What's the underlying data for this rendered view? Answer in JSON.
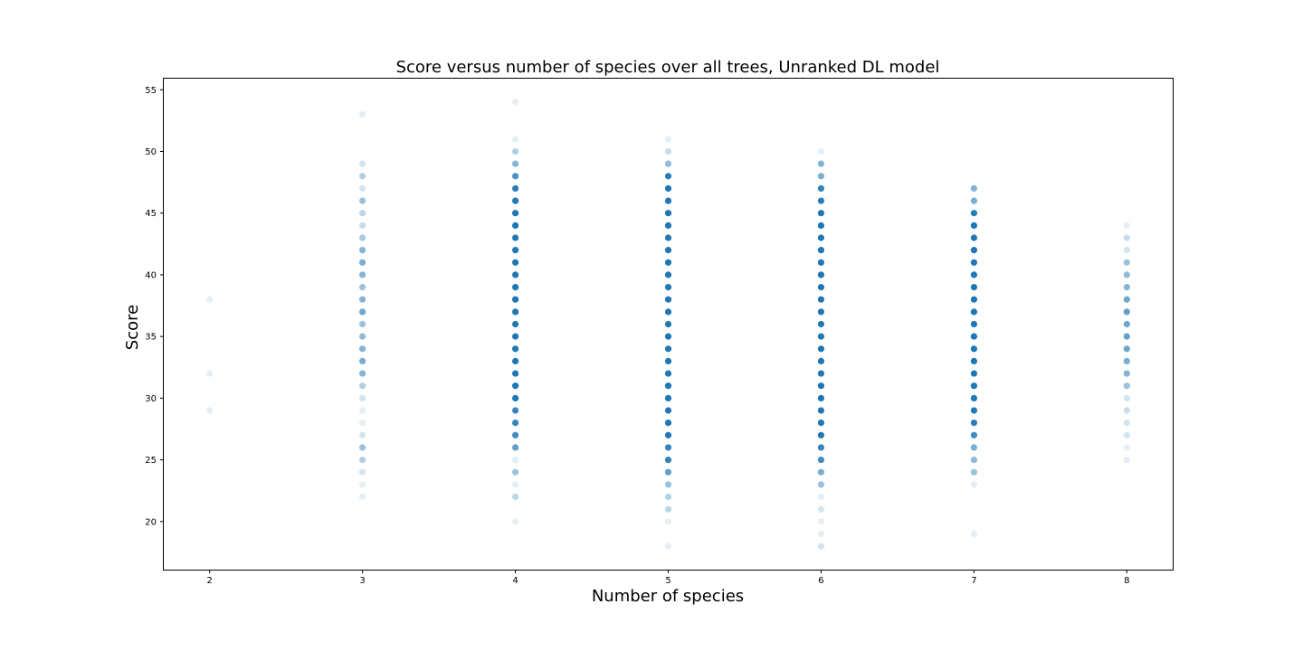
{
  "chart_data": {
    "type": "scatter",
    "title": "Score versus number of species over all trees, Unranked DL model",
    "xlabel": "Number of species",
    "ylabel": "Score",
    "x_ticks": [
      2,
      3,
      4,
      5,
      6,
      7,
      8
    ],
    "y_ticks": [
      20,
      25,
      30,
      35,
      40,
      45,
      50,
      55
    ],
    "xlim": [
      1.7,
      8.3
    ],
    "ylim": [
      16.1,
      55.9
    ],
    "grid": false,
    "legend": "none",
    "marker_color": "#1f77b4",
    "points": [
      {
        "x": 2,
        "y": 29,
        "alpha": 0.12
      },
      {
        "x": 2,
        "y": 32,
        "alpha": 0.12
      },
      {
        "x": 2,
        "y": 38,
        "alpha": 0.12
      },
      {
        "x": 3,
        "y": 22,
        "alpha": 0.12
      },
      {
        "x": 3,
        "y": 23,
        "alpha": 0.12
      },
      {
        "x": 3,
        "y": 24,
        "alpha": 0.2
      },
      {
        "x": 3,
        "y": 25,
        "alpha": 0.35
      },
      {
        "x": 3,
        "y": 26,
        "alpha": 0.45
      },
      {
        "x": 3,
        "y": 27,
        "alpha": 0.2
      },
      {
        "x": 3,
        "y": 28,
        "alpha": 0.12
      },
      {
        "x": 3,
        "y": 29,
        "alpha": 0.12
      },
      {
        "x": 3,
        "y": 30,
        "alpha": 0.2
      },
      {
        "x": 3,
        "y": 31,
        "alpha": 0.35
      },
      {
        "x": 3,
        "y": 32,
        "alpha": 0.55
      },
      {
        "x": 3,
        "y": 33,
        "alpha": 0.6
      },
      {
        "x": 3,
        "y": 34,
        "alpha": 0.55
      },
      {
        "x": 3,
        "y": 35,
        "alpha": 0.5
      },
      {
        "x": 3,
        "y": 36,
        "alpha": 0.45
      },
      {
        "x": 3,
        "y": 37,
        "alpha": 0.65
      },
      {
        "x": 3,
        "y": 38,
        "alpha": 0.55
      },
      {
        "x": 3,
        "y": 39,
        "alpha": 0.45
      },
      {
        "x": 3,
        "y": 40,
        "alpha": 0.55
      },
      {
        "x": 3,
        "y": 41,
        "alpha": 0.6
      },
      {
        "x": 3,
        "y": 42,
        "alpha": 0.55
      },
      {
        "x": 3,
        "y": 43,
        "alpha": 0.4
      },
      {
        "x": 3,
        "y": 44,
        "alpha": 0.25
      },
      {
        "x": 3,
        "y": 45,
        "alpha": 0.3
      },
      {
        "x": 3,
        "y": 46,
        "alpha": 0.45
      },
      {
        "x": 3,
        "y": 47,
        "alpha": 0.2
      },
      {
        "x": 3,
        "y": 48,
        "alpha": 0.35
      },
      {
        "x": 3,
        "y": 49,
        "alpha": 0.2
      },
      {
        "x": 3,
        "y": 53,
        "alpha": 0.12
      },
      {
        "x": 4,
        "y": 20,
        "alpha": 0.12
      },
      {
        "x": 4,
        "y": 22,
        "alpha": 0.3
      },
      {
        "x": 4,
        "y": 23,
        "alpha": 0.12
      },
      {
        "x": 4,
        "y": 24,
        "alpha": 0.45
      },
      {
        "x": 4,
        "y": 25,
        "alpha": 0.12
      },
      {
        "x": 4,
        "y": 26,
        "alpha": 0.7
      },
      {
        "x": 4,
        "y": 27,
        "alpha": 0.85
      },
      {
        "x": 4,
        "y": 28,
        "alpha": 0.9
      },
      {
        "x": 4,
        "y": 29,
        "alpha": 0.9
      },
      {
        "x": 4,
        "y": 30,
        "alpha": 1
      },
      {
        "x": 4,
        "y": 31,
        "alpha": 1
      },
      {
        "x": 4,
        "y": 32,
        "alpha": 1
      },
      {
        "x": 4,
        "y": 33,
        "alpha": 1
      },
      {
        "x": 4,
        "y": 34,
        "alpha": 1
      },
      {
        "x": 4,
        "y": 35,
        "alpha": 1
      },
      {
        "x": 4,
        "y": 36,
        "alpha": 1
      },
      {
        "x": 4,
        "y": 37,
        "alpha": 1
      },
      {
        "x": 4,
        "y": 38,
        "alpha": 1
      },
      {
        "x": 4,
        "y": 39,
        "alpha": 1
      },
      {
        "x": 4,
        "y": 40,
        "alpha": 1
      },
      {
        "x": 4,
        "y": 41,
        "alpha": 1
      },
      {
        "x": 4,
        "y": 42,
        "alpha": 1
      },
      {
        "x": 4,
        "y": 43,
        "alpha": 1
      },
      {
        "x": 4,
        "y": 44,
        "alpha": 1
      },
      {
        "x": 4,
        "y": 45,
        "alpha": 1
      },
      {
        "x": 4,
        "y": 46,
        "alpha": 1
      },
      {
        "x": 4,
        "y": 47,
        "alpha": 0.95
      },
      {
        "x": 4,
        "y": 48,
        "alpha": 0.8
      },
      {
        "x": 4,
        "y": 49,
        "alpha": 0.55
      },
      {
        "x": 4,
        "y": 50,
        "alpha": 0.35
      },
      {
        "x": 4,
        "y": 51,
        "alpha": 0.12
      },
      {
        "x": 4,
        "y": 54,
        "alpha": 0.12
      },
      {
        "x": 5,
        "y": 18,
        "alpha": 0.12
      },
      {
        "x": 5,
        "y": 20,
        "alpha": 0.12
      },
      {
        "x": 5,
        "y": 21,
        "alpha": 0.3
      },
      {
        "x": 5,
        "y": 22,
        "alpha": 0.35
      },
      {
        "x": 5,
        "y": 23,
        "alpha": 0.45
      },
      {
        "x": 5,
        "y": 24,
        "alpha": 0.7
      },
      {
        "x": 5,
        "y": 25,
        "alpha": 0.9
      },
      {
        "x": 5,
        "y": 26,
        "alpha": 0.9
      },
      {
        "x": 5,
        "y": 27,
        "alpha": 1
      },
      {
        "x": 5,
        "y": 28,
        "alpha": 1
      },
      {
        "x": 5,
        "y": 29,
        "alpha": 1
      },
      {
        "x": 5,
        "y": 30,
        "alpha": 1
      },
      {
        "x": 5,
        "y": 31,
        "alpha": 1
      },
      {
        "x": 5,
        "y": 32,
        "alpha": 1
      },
      {
        "x": 5,
        "y": 33,
        "alpha": 1
      },
      {
        "x": 5,
        "y": 34,
        "alpha": 1
      },
      {
        "x": 5,
        "y": 35,
        "alpha": 1
      },
      {
        "x": 5,
        "y": 36,
        "alpha": 1
      },
      {
        "x": 5,
        "y": 37,
        "alpha": 1
      },
      {
        "x": 5,
        "y": 38,
        "alpha": 1
      },
      {
        "x": 5,
        "y": 39,
        "alpha": 1
      },
      {
        "x": 5,
        "y": 40,
        "alpha": 1
      },
      {
        "x": 5,
        "y": 41,
        "alpha": 1
      },
      {
        "x": 5,
        "y": 42,
        "alpha": 1
      },
      {
        "x": 5,
        "y": 43,
        "alpha": 1
      },
      {
        "x": 5,
        "y": 44,
        "alpha": 1
      },
      {
        "x": 5,
        "y": 45,
        "alpha": 1
      },
      {
        "x": 5,
        "y": 46,
        "alpha": 1
      },
      {
        "x": 5,
        "y": 47,
        "alpha": 1
      },
      {
        "x": 5,
        "y": 48,
        "alpha": 0.95
      },
      {
        "x": 5,
        "y": 49,
        "alpha": 0.5
      },
      {
        "x": 5,
        "y": 50,
        "alpha": 0.25
      },
      {
        "x": 5,
        "y": 51,
        "alpha": 0.12
      },
      {
        "x": 6,
        "y": 18,
        "alpha": 0.2
      },
      {
        "x": 6,
        "y": 19,
        "alpha": 0.12
      },
      {
        "x": 6,
        "y": 20,
        "alpha": 0.12
      },
      {
        "x": 6,
        "y": 21,
        "alpha": 0.2
      },
      {
        "x": 6,
        "y": 22,
        "alpha": 0.12
      },
      {
        "x": 6,
        "y": 23,
        "alpha": 0.45
      },
      {
        "x": 6,
        "y": 24,
        "alpha": 0.6
      },
      {
        "x": 6,
        "y": 25,
        "alpha": 0.85
      },
      {
        "x": 6,
        "y": 26,
        "alpha": 0.9
      },
      {
        "x": 6,
        "y": 27,
        "alpha": 1
      },
      {
        "x": 6,
        "y": 28,
        "alpha": 1
      },
      {
        "x": 6,
        "y": 29,
        "alpha": 1
      },
      {
        "x": 6,
        "y": 30,
        "alpha": 1
      },
      {
        "x": 6,
        "y": 31,
        "alpha": 1
      },
      {
        "x": 6,
        "y": 32,
        "alpha": 1
      },
      {
        "x": 6,
        "y": 33,
        "alpha": 1
      },
      {
        "x": 6,
        "y": 34,
        "alpha": 1
      },
      {
        "x": 6,
        "y": 35,
        "alpha": 1
      },
      {
        "x": 6,
        "y": 36,
        "alpha": 1
      },
      {
        "x": 6,
        "y": 37,
        "alpha": 1
      },
      {
        "x": 6,
        "y": 38,
        "alpha": 1
      },
      {
        "x": 6,
        "y": 39,
        "alpha": 1
      },
      {
        "x": 6,
        "y": 40,
        "alpha": 1
      },
      {
        "x": 6,
        "y": 41,
        "alpha": 1
      },
      {
        "x": 6,
        "y": 42,
        "alpha": 1
      },
      {
        "x": 6,
        "y": 43,
        "alpha": 1
      },
      {
        "x": 6,
        "y": 44,
        "alpha": 1
      },
      {
        "x": 6,
        "y": 45,
        "alpha": 1
      },
      {
        "x": 6,
        "y": 46,
        "alpha": 0.95
      },
      {
        "x": 6,
        "y": 47,
        "alpha": 0.9
      },
      {
        "x": 6,
        "y": 48,
        "alpha": 0.6
      },
      {
        "x": 6,
        "y": 49,
        "alpha": 0.55
      },
      {
        "x": 6,
        "y": 50,
        "alpha": 0.12
      },
      {
        "x": 7,
        "y": 19,
        "alpha": 0.12
      },
      {
        "x": 7,
        "y": 23,
        "alpha": 0.12
      },
      {
        "x": 7,
        "y": 24,
        "alpha": 0.45
      },
      {
        "x": 7,
        "y": 25,
        "alpha": 0.5
      },
      {
        "x": 7,
        "y": 26,
        "alpha": 0.6
      },
      {
        "x": 7,
        "y": 27,
        "alpha": 0.85
      },
      {
        "x": 7,
        "y": 28,
        "alpha": 0.95
      },
      {
        "x": 7,
        "y": 29,
        "alpha": 1
      },
      {
        "x": 7,
        "y": 30,
        "alpha": 1
      },
      {
        "x": 7,
        "y": 31,
        "alpha": 1
      },
      {
        "x": 7,
        "y": 32,
        "alpha": 1
      },
      {
        "x": 7,
        "y": 33,
        "alpha": 1
      },
      {
        "x": 7,
        "y": 34,
        "alpha": 1
      },
      {
        "x": 7,
        "y": 35,
        "alpha": 1
      },
      {
        "x": 7,
        "y": 36,
        "alpha": 1
      },
      {
        "x": 7,
        "y": 37,
        "alpha": 1
      },
      {
        "x": 7,
        "y": 38,
        "alpha": 1
      },
      {
        "x": 7,
        "y": 39,
        "alpha": 1
      },
      {
        "x": 7,
        "y": 40,
        "alpha": 1
      },
      {
        "x": 7,
        "y": 41,
        "alpha": 1
      },
      {
        "x": 7,
        "y": 42,
        "alpha": 1
      },
      {
        "x": 7,
        "y": 43,
        "alpha": 1
      },
      {
        "x": 7,
        "y": 44,
        "alpha": 1
      },
      {
        "x": 7,
        "y": 45,
        "alpha": 0.95
      },
      {
        "x": 7,
        "y": 46,
        "alpha": 0.6
      },
      {
        "x": 7,
        "y": 47,
        "alpha": 0.55
      },
      {
        "x": 8,
        "y": 25,
        "alpha": 0.12
      },
      {
        "x": 8,
        "y": 26,
        "alpha": 0.12
      },
      {
        "x": 8,
        "y": 27,
        "alpha": 0.2
      },
      {
        "x": 8,
        "y": 28,
        "alpha": 0.2
      },
      {
        "x": 8,
        "y": 29,
        "alpha": 0.25
      },
      {
        "x": 8,
        "y": 30,
        "alpha": 0.2
      },
      {
        "x": 8,
        "y": 31,
        "alpha": 0.45
      },
      {
        "x": 8,
        "y": 32,
        "alpha": 0.55
      },
      {
        "x": 8,
        "y": 33,
        "alpha": 0.6
      },
      {
        "x": 8,
        "y": 34,
        "alpha": 0.65
      },
      {
        "x": 8,
        "y": 35,
        "alpha": 0.7
      },
      {
        "x": 8,
        "y": 36,
        "alpha": 0.65
      },
      {
        "x": 8,
        "y": 37,
        "alpha": 0.7
      },
      {
        "x": 8,
        "y": 38,
        "alpha": 0.65
      },
      {
        "x": 8,
        "y": 39,
        "alpha": 0.55
      },
      {
        "x": 8,
        "y": 40,
        "alpha": 0.5
      },
      {
        "x": 8,
        "y": 41,
        "alpha": 0.45
      },
      {
        "x": 8,
        "y": 42,
        "alpha": 0.2
      },
      {
        "x": 8,
        "y": 43,
        "alpha": 0.25
      },
      {
        "x": 8,
        "y": 44,
        "alpha": 0.12
      }
    ]
  }
}
